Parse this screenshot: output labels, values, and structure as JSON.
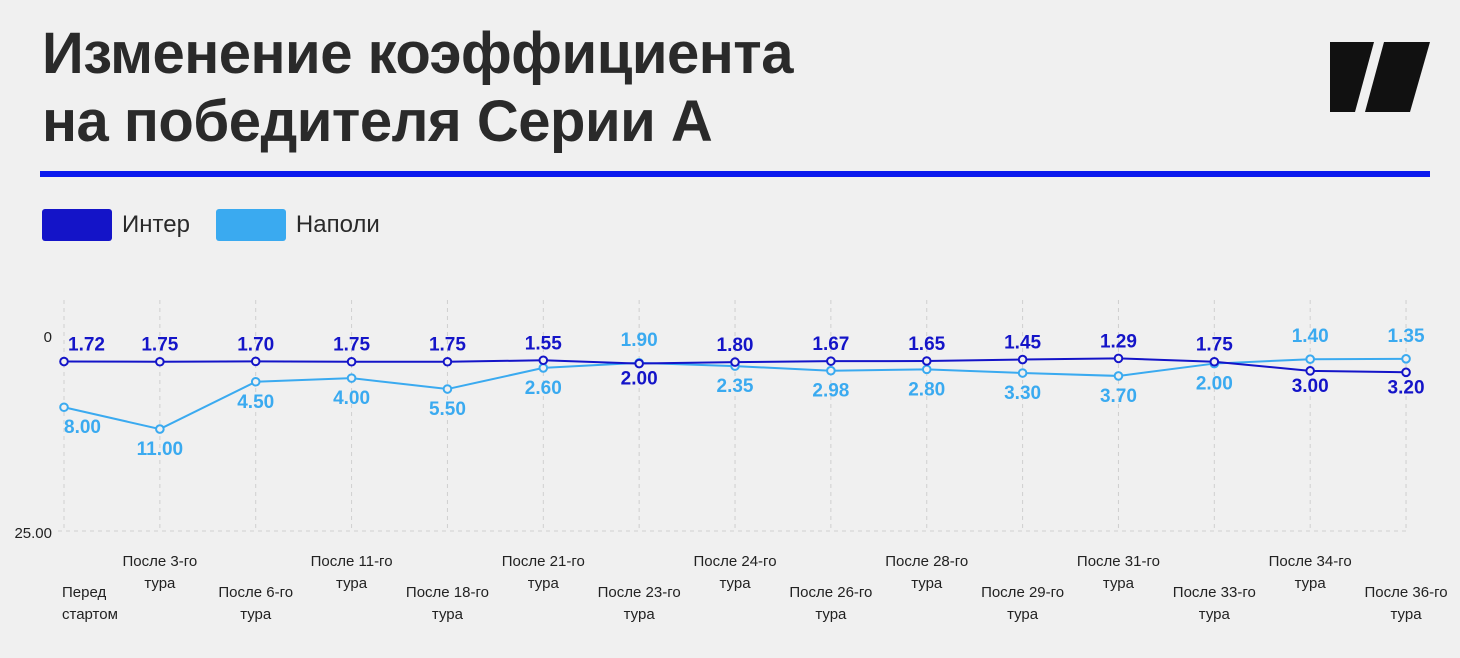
{
  "title_lines": [
    "Изменение коэффициента",
    "на победителя Серии А"
  ],
  "logo": {
    "icon": "slanted-bars-logo",
    "color": "#111111"
  },
  "colors": {
    "accent": "#0c1aee",
    "inter": "#1414c8",
    "napoli": "#3aaaf0",
    "background": "#f0f0f0"
  },
  "chart_data": {
    "type": "line",
    "y_axis": {
      "min": 0,
      "max": 25,
      "ticks": [
        "0",
        "25.00"
      ],
      "inverted": true
    },
    "grid": "vertical-dashed",
    "legend_position": "top-left",
    "categories": [
      [
        "Перед",
        "стартом"
      ],
      [
        "После 3-го",
        "тура"
      ],
      [
        "После 6-го",
        "тура"
      ],
      [
        "После 11-го",
        "тура"
      ],
      [
        "После 18-го",
        "тура"
      ],
      [
        "После 21-го",
        "тура"
      ],
      [
        "После 23-го",
        "тура"
      ],
      [
        "После 24-го",
        "тура"
      ],
      [
        "После 26-го",
        "тура"
      ],
      [
        "После 28-го",
        "тура"
      ],
      [
        "После 29-го",
        "тура"
      ],
      [
        "После 31-го",
        "тура"
      ],
      [
        "После 33-го",
        "тура"
      ],
      [
        "После 34-го",
        "тура"
      ],
      [
        "После 36-го",
        "тура"
      ]
    ],
    "series": [
      {
        "name": "Интер",
        "color": "#1414c8",
        "values": [
          1.72,
          1.75,
          1.7,
          1.75,
          1.75,
          1.55,
          2.0,
          1.8,
          1.67,
          1.65,
          1.45,
          1.29,
          1.75,
          3.0,
          3.2
        ],
        "labels": [
          "1.72",
          "1.75",
          "1.70",
          "1.75",
          "1.75",
          "1.55",
          "2.00",
          "1.80",
          "1.67",
          "1.65",
          "1.45",
          "1.29",
          "1.75",
          "3.00",
          "3.20"
        ]
      },
      {
        "name": "Наполи",
        "color": "#3aaaf0",
        "values": [
          8.0,
          11.0,
          4.5,
          4.0,
          5.5,
          2.6,
          1.9,
          2.35,
          2.98,
          2.8,
          3.3,
          3.7,
          2.0,
          1.4,
          1.35
        ],
        "labels": [
          "8.00",
          "11.00",
          "4.50",
          "4.00",
          "5.50",
          "2.60",
          "1.90",
          "2.35",
          "2.98",
          "2.80",
          "3.30",
          "3.70",
          "2.00",
          "1.40",
          "1.35"
        ]
      }
    ]
  }
}
